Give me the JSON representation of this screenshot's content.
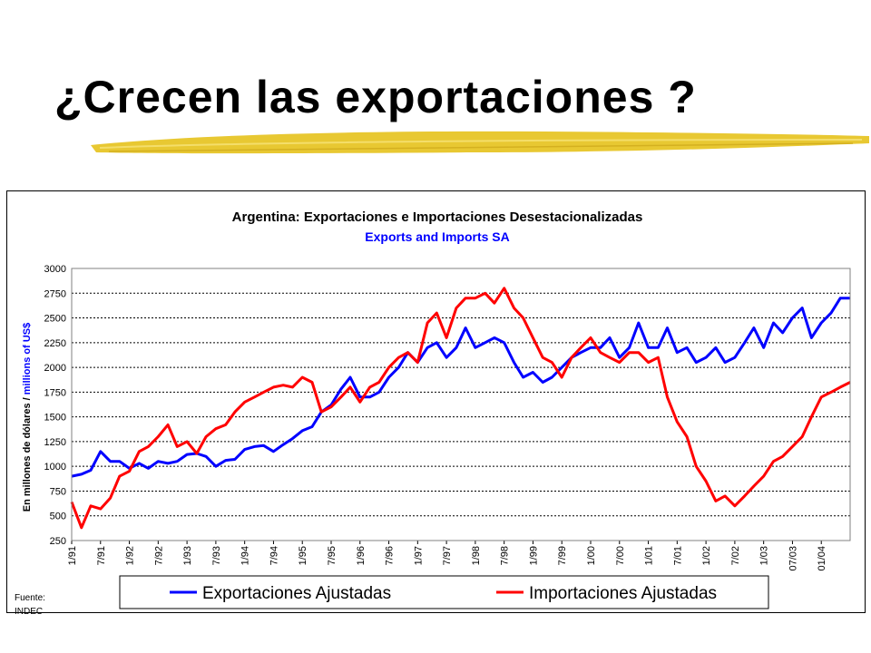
{
  "slide": {
    "title": "¿Crecen las exportaciones ?",
    "source_label": "Fuente:",
    "source_value": "INDEC"
  },
  "colors": {
    "exports": "#0000ff",
    "imports": "#ff0000",
    "grid": "#000000",
    "underline": "#e8c832"
  },
  "chart_data": {
    "type": "line",
    "title": "Argentina: Exportaciones e Importaciones Desestacionalizadas",
    "subtitle": "Exports and Imports SA",
    "ylabel_es": "En millones de dólares /",
    "ylabel_en": " millions of US$",
    "ylim": [
      250,
      3000
    ],
    "yticks": [
      250,
      500,
      750,
      1000,
      1250,
      1500,
      1750,
      2000,
      2250,
      2500,
      2750,
      3000
    ],
    "grid": true,
    "legend_position": "bottom",
    "x_tick_labels": [
      "1/91",
      "7/91",
      "1/92",
      "7/92",
      "1/93",
      "7/93",
      "1/94",
      "7/94",
      "1/95",
      "7/95",
      "1/96",
      "7/96",
      "1/97",
      "7/97",
      "1/98",
      "7/98",
      "1/99",
      "7/99",
      "1/00",
      "7/00",
      "1/01",
      "7/01",
      "1/02",
      "7/02",
      "1/03",
      "07/03",
      "01/04"
    ],
    "x_start": 1991.0,
    "x_end": 2004.5,
    "series": [
      {
        "name": "Exportaciones Ajustadas",
        "color": "#0000ff",
        "x": [
          1991.0,
          1991.17,
          1991.33,
          1991.5,
          1991.67,
          1991.83,
          1992.0,
          1992.17,
          1992.33,
          1992.5,
          1992.67,
          1992.83,
          1993.0,
          1993.17,
          1993.33,
          1993.5,
          1993.67,
          1993.83,
          1994.0,
          1994.17,
          1994.33,
          1994.5,
          1994.67,
          1994.83,
          1995.0,
          1995.17,
          1995.33,
          1995.5,
          1995.67,
          1995.83,
          1996.0,
          1996.17,
          1996.33,
          1996.5,
          1996.67,
          1996.83,
          1997.0,
          1997.17,
          1997.33,
          1997.5,
          1997.67,
          1997.83,
          1998.0,
          1998.17,
          1998.33,
          1998.5,
          1998.67,
          1998.83,
          1999.0,
          1999.17,
          1999.33,
          1999.5,
          1999.67,
          1999.83,
          2000.0,
          2000.17,
          2000.33,
          2000.5,
          2000.67,
          2000.83,
          2001.0,
          2001.17,
          2001.33,
          2001.5,
          2001.67,
          2001.83,
          2002.0,
          2002.17,
          2002.33,
          2002.5,
          2002.67,
          2002.83,
          2003.0,
          2003.17,
          2003.33,
          2003.5,
          2003.67,
          2003.83,
          2004.0,
          2004.17,
          2004.33,
          2004.5
        ],
        "values": [
          900,
          920,
          960,
          1150,
          1050,
          1050,
          980,
          1030,
          980,
          1050,
          1030,
          1050,
          1120,
          1130,
          1100,
          1000,
          1060,
          1070,
          1170,
          1200,
          1210,
          1150,
          1220,
          1280,
          1360,
          1400,
          1550,
          1620,
          1780,
          1900,
          1700,
          1700,
          1750,
          1900,
          2000,
          2150,
          2050,
          2200,
          2250,
          2100,
          2200,
          2400,
          2200,
          2250,
          2300,
          2250,
          2050,
          1900,
          1950,
          1850,
          1900,
          2000,
          2100,
          2150,
          2200,
          2200,
          2300,
          2100,
          2200,
          2450,
          2200,
          2200,
          2400,
          2150,
          2200,
          2050,
          2100,
          2200,
          2050,
          2100,
          2250,
          2400,
          2200,
          2450,
          2350,
          2500,
          2600,
          2300,
          2450,
          2550,
          2700,
          2700
        ]
      },
      {
        "name": "Importaciones Ajustadas",
        "color": "#ff0000",
        "x": [
          1991.0,
          1991.17,
          1991.33,
          1991.5,
          1991.67,
          1991.83,
          1992.0,
          1992.17,
          1992.33,
          1992.5,
          1992.67,
          1992.83,
          1993.0,
          1993.17,
          1993.33,
          1993.5,
          1993.67,
          1993.83,
          1994.0,
          1994.17,
          1994.33,
          1994.5,
          1994.67,
          1994.83,
          1995.0,
          1995.17,
          1995.33,
          1995.5,
          1995.67,
          1995.83,
          1996.0,
          1996.17,
          1996.33,
          1996.5,
          1996.67,
          1996.83,
          1997.0,
          1997.17,
          1997.33,
          1997.5,
          1997.67,
          1997.83,
          1998.0,
          1998.17,
          1998.33,
          1998.5,
          1998.67,
          1998.83,
          1999.0,
          1999.17,
          1999.33,
          1999.5,
          1999.67,
          1999.83,
          2000.0,
          2000.17,
          2000.33,
          2000.5,
          2000.67,
          2000.83,
          2001.0,
          2001.17,
          2001.33,
          2001.5,
          2001.67,
          2001.83,
          2002.0,
          2002.17,
          2002.33,
          2002.5,
          2002.67,
          2002.83,
          2003.0,
          2003.17,
          2003.33,
          2003.5,
          2003.67,
          2003.83,
          2004.0,
          2004.17,
          2004.33,
          2004.5
        ],
        "values": [
          640,
          380,
          600,
          570,
          680,
          900,
          950,
          1150,
          1200,
          1300,
          1420,
          1200,
          1250,
          1130,
          1300,
          1380,
          1420,
          1550,
          1650,
          1700,
          1750,
          1800,
          1820,
          1800,
          1900,
          1850,
          1550,
          1600,
          1700,
          1800,
          1650,
          1800,
          1850,
          2000,
          2100,
          2150,
          2050,
          2450,
          2550,
          2300,
          2600,
          2700,
          2700,
          2750,
          2650,
          2800,
          2600,
          2500,
          2300,
          2100,
          2050,
          1900,
          2100,
          2200,
          2300,
          2150,
          2100,
          2050,
          2150,
          2150,
          2050,
          2100,
          1700,
          1450,
          1300,
          1000,
          850,
          650,
          700,
          600,
          700,
          800,
          900,
          1050,
          1100,
          1200,
          1300,
          1500,
          1700,
          1750,
          1800,
          1850
        ]
      }
    ]
  }
}
